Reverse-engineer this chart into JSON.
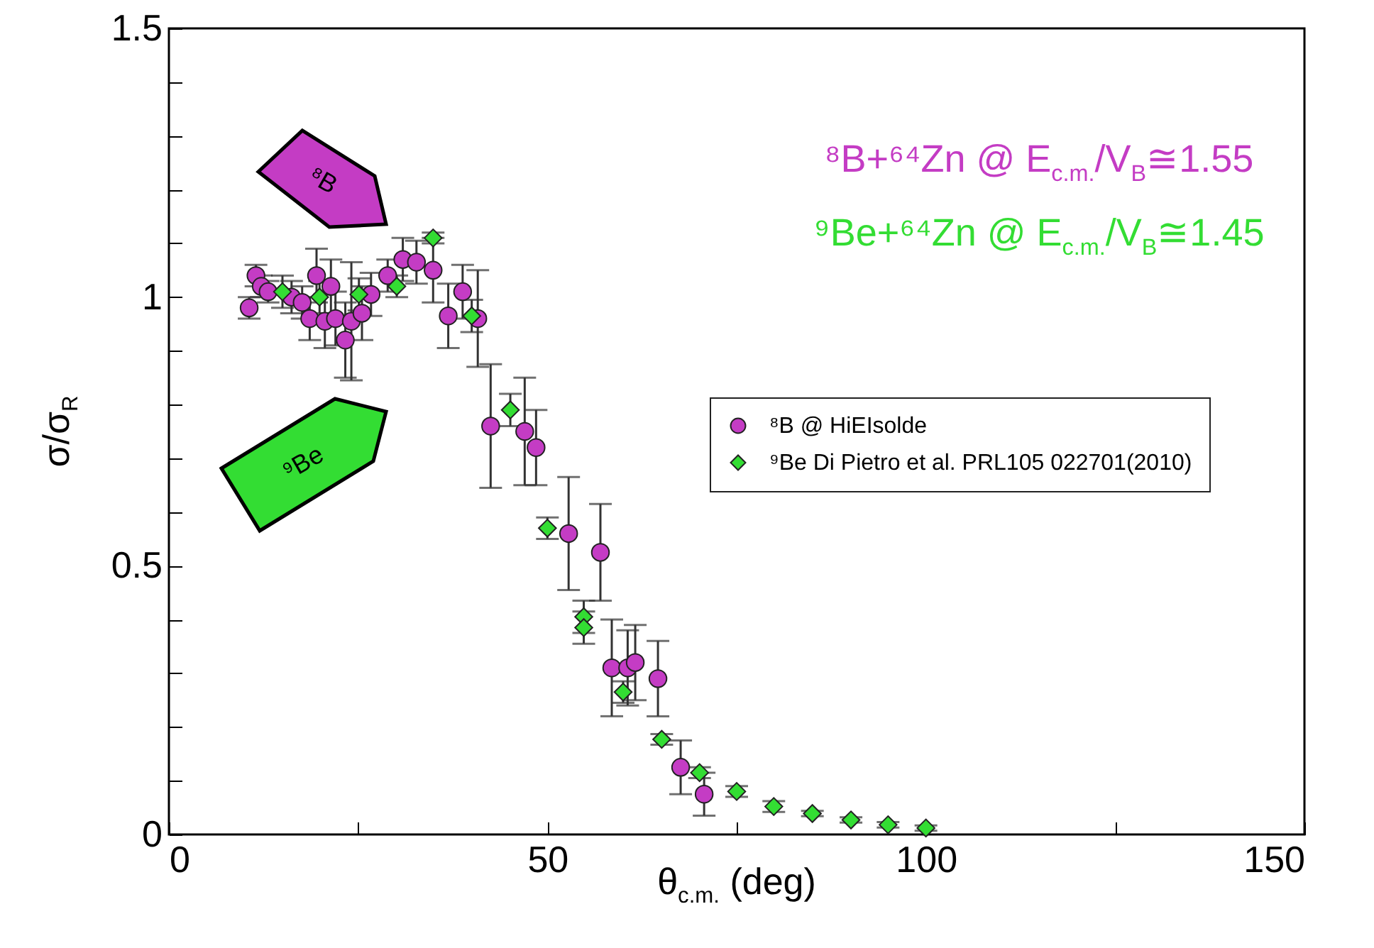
{
  "chart_data": {
    "type": "scatter",
    "xlabel": "θ$_{c.m.}$ (deg)",
    "ylabel": "σ/σ$_{R}$",
    "xlim": [
      0,
      150
    ],
    "xticks": [
      0,
      {
        "value": 25,
        "label": null
      },
      50,
      {
        "value": 75,
        "label": null
      },
      100,
      {
        "value": 125,
        "label": null
      },
      150
    ],
    "ylim": [
      0,
      1.5
    ],
    "yticks": [
      0,
      {
        "value": 0.1,
        "label": null
      },
      {
        "value": 0.2,
        "label": null
      },
      {
        "value": 0.3,
        "label": null
      },
      {
        "value": 0.4,
        "label": null
      },
      0.5,
      {
        "value": 0.6,
        "label": null
      },
      {
        "value": 0.7,
        "label": null
      },
      {
        "value": 0.8,
        "label": null
      },
      {
        "value": 0.9,
        "label": null
      },
      1,
      {
        "value": 1.1,
        "label": null
      },
      {
        "value": 1.2,
        "label": null
      },
      {
        "value": 1.3,
        "label": null
      },
      {
        "value": 1.4,
        "label": null
      },
      1.5
    ],
    "legend": "right",
    "annotations": [
      "⁸B+⁶⁴Zn @ E$_{c.m.}$/V$_{B}$≅1.55",
      "⁹Be+⁶⁴Zn @ E$_{c.m.}$/V$_{B}$≅1.45",
      "⁸B",
      "⁹Be"
    ],
    "series": [
      {
        "name": "⁸B @ HiEIsolde",
        "color": "#c43cc4",
        "marker": "circle",
        "x": [
          10.6,
          11.5,
          12.2,
          13.1,
          16.2,
          17.6,
          18.6,
          19.5,
          20.6,
          21.4,
          22.0,
          23.3,
          24.1,
          25.5,
          26.7,
          28.9,
          30.9,
          32.7,
          34.9,
          36.9,
          38.8,
          40.8,
          42.5,
          47.0,
          48.5,
          52.8,
          57.0,
          58.5,
          60.6,
          61.6,
          64.6,
          67.6,
          70.7
        ],
        "values": [
          0.98,
          1.04,
          1.02,
          1.01,
          1.0,
          0.99,
          0.96,
          1.04,
          0.955,
          1.02,
          0.96,
          0.92,
          0.955,
          0.97,
          1.005,
          1.04,
          1.07,
          1.065,
          1.05,
          0.965,
          1.01,
          0.96,
          0.76,
          0.75,
          0.72,
          0.56,
          0.525,
          0.31,
          0.31,
          0.32,
          0.29,
          0.125,
          0.075
        ],
        "errors": [
          0.02,
          0.02,
          0.02,
          0.02,
          0.03,
          0.03,
          0.04,
          0.05,
          0.05,
          0.05,
          0.05,
          0.07,
          0.11,
          0.05,
          0.04,
          0.03,
          0.04,
          0.04,
          0.06,
          0.06,
          0.05,
          0.09,
          0.115,
          0.1,
          0.07,
          0.105,
          0.09,
          0.09,
          0.07,
          0.07,
          0.07,
          0.05,
          0.04
        ]
      },
      {
        "name": "⁹Be Di Pietro et al. PRL105 022701(2010)",
        "color": "#33dd33",
        "marker": "diamond",
        "x": [
          15.0,
          19.9,
          25.1,
          30.1,
          34.9,
          40.0,
          45.1,
          50.0,
          54.8,
          54.8,
          60.0,
          65.1,
          70.1,
          75.0,
          79.9,
          85.0,
          90.1,
          95.0,
          100.0
        ],
        "values": [
          1.01,
          1.0,
          1.005,
          1.02,
          1.11,
          0.965,
          0.79,
          0.57,
          0.405,
          0.385,
          0.265,
          0.177,
          0.115,
          0.08,
          0.052,
          0.039,
          0.027,
          0.018,
          0.012
        ],
        "errors": [
          0.03,
          0.03,
          0.03,
          0.02,
          0.01,
          0.03,
          0.03,
          0.02,
          0.03,
          0.03,
          0.02,
          0.01,
          0.01,
          0.01,
          0.01,
          0.005,
          0.005,
          0.005,
          0.005
        ]
      }
    ]
  }
}
